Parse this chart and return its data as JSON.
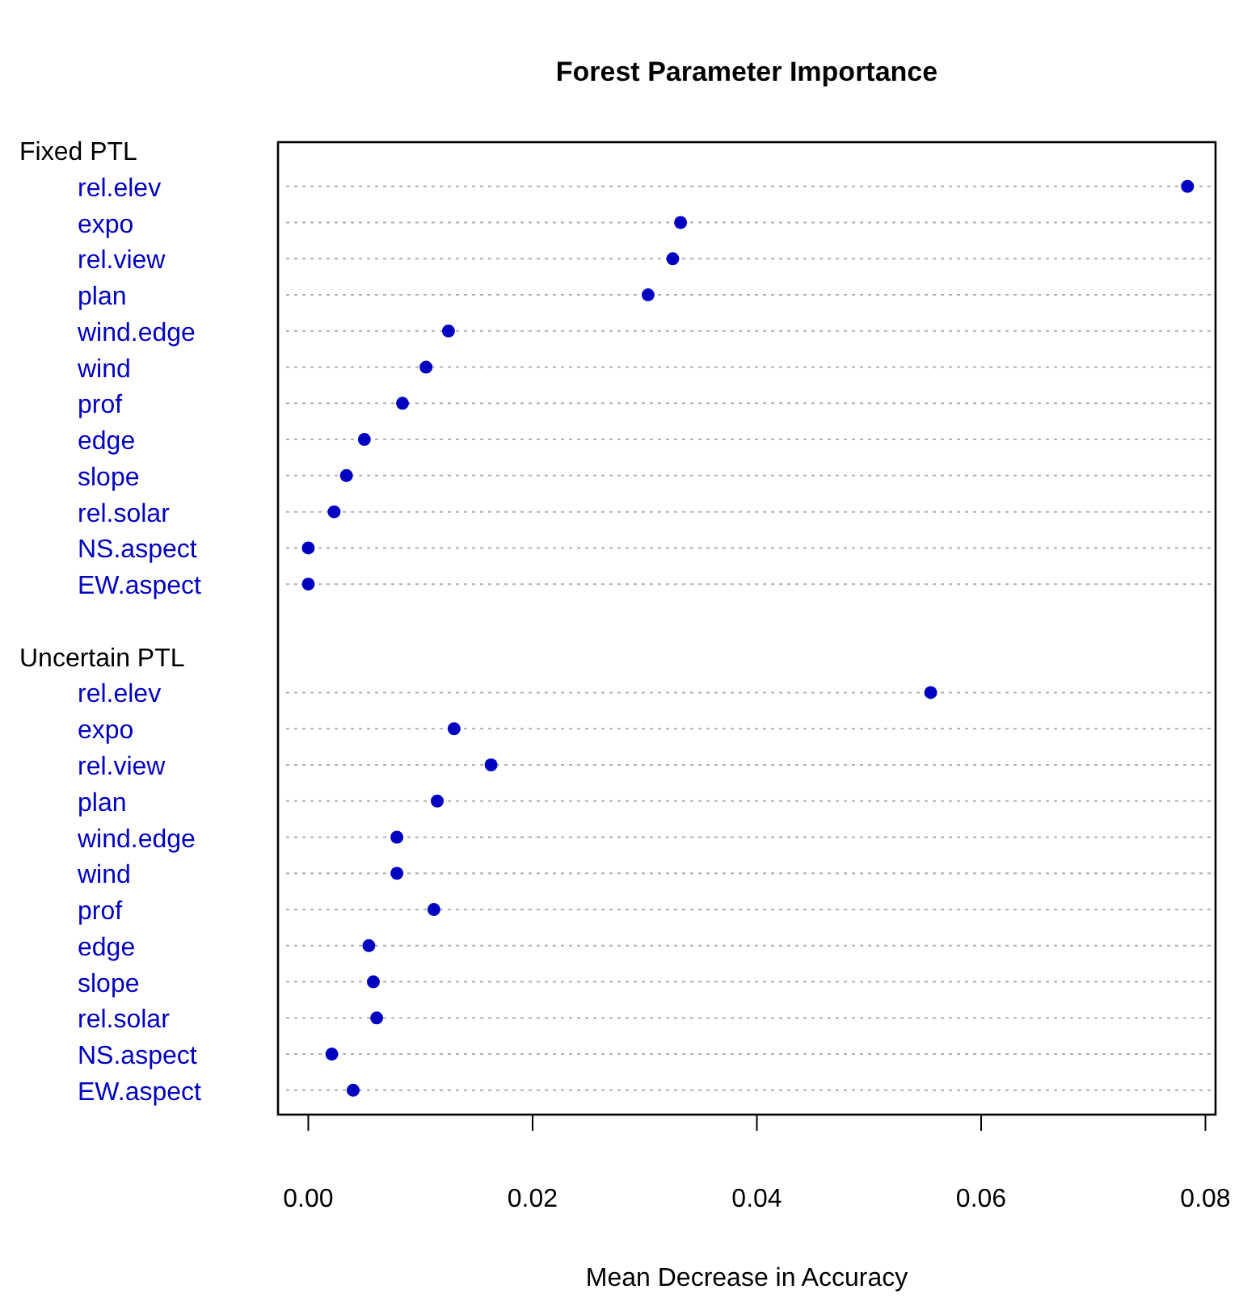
{
  "chart_data": {
    "type": "scatter",
    "orientation": "horizontal",
    "title": "Forest Parameter Importance",
    "xlabel": "Mean Decrease in Accuracy",
    "categories": [
      "rel.elev",
      "expo",
      "rel.view",
      "plan",
      "wind.edge",
      "wind",
      "prof",
      "edge",
      "slope",
      "rel.solar",
      "NS.aspect",
      "EW.aspect",
      "rel.elev",
      "expo",
      "rel.view",
      "plan",
      "wind.edge",
      "wind",
      "prof",
      "edge",
      "slope",
      "rel.solar",
      "NS.aspect",
      "EW.aspect"
    ],
    "series": [
      {
        "color": "#0000c0",
        "values": [
          0.0784,
          0.0332,
          0.0325,
          0.0303,
          0.0125,
          0.0105,
          0.0084,
          0.005,
          0.0034,
          0.0023,
          0.0,
          0.0,
          null,
          null,
          null,
          null,
          null,
          null,
          null,
          null,
          null,
          null,
          null,
          null
        ]
      },
      {
        "color": "#0000c0",
        "values": [
          null,
          null,
          null,
          null,
          null,
          null,
          null,
          null,
          null,
          null,
          null,
          null,
          0.0555,
          0.013,
          0.0163,
          0.0115,
          0.0079,
          0.0079,
          0.0112,
          0.0054,
          0.0058,
          0.0061,
          0.0021,
          0.004
        ]
      }
    ],
    "xlim": [
      -0.0027,
      0.0809
    ],
    "xticks": [
      {
        "value": 0,
        "label": "0.00"
      },
      {
        "value": 0.02,
        "label": "0.02"
      },
      {
        "value": 0.04,
        "label": "0.04"
      },
      {
        "value": 0.06,
        "label": "0.06"
      },
      {
        "value": 0.08,
        "label": "0.08"
      }
    ],
    "annotations": [
      "Fixed PTL",
      "Uncertain PTL"
    ],
    "grid": "y",
    "marker": "circle"
  }
}
